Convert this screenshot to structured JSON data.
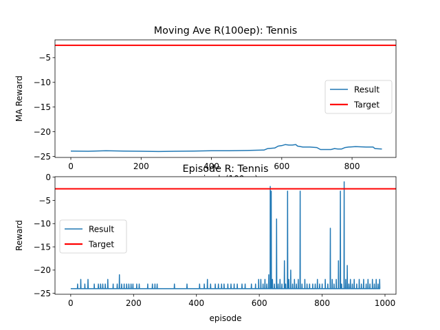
{
  "colors": {
    "result": "#1f77b4",
    "target": "#ff0000",
    "axes": "#000000",
    "background": "#ffffff"
  },
  "chart_data": [
    {
      "type": "line",
      "title": "Moving Ave R(100ep): Tennis",
      "xlabel": "episode(100ep)",
      "ylabel": "MA Reward",
      "xlim": [
        -45,
        925
      ],
      "ylim": [
        -25.2,
        -1.4
      ],
      "xticks": [
        0,
        200,
        400,
        600,
        800
      ],
      "yticks": [
        -25,
        -20,
        -15,
        -10,
        -5
      ],
      "legend_position": "center-right",
      "grid": false,
      "series": [
        {
          "name": "Result",
          "color": "#1f77b4",
          "points": [
            [
              0,
              -23.9
            ],
            [
              50,
              -23.95
            ],
            [
              100,
              -23.85
            ],
            [
              150,
              -23.9
            ],
            [
              200,
              -23.95
            ],
            [
              250,
              -24.0
            ],
            [
              300,
              -23.95
            ],
            [
              350,
              -23.9
            ],
            [
              400,
              -23.85
            ],
            [
              450,
              -23.85
            ],
            [
              500,
              -23.8
            ],
            [
              550,
              -23.7
            ],
            [
              560,
              -23.4
            ],
            [
              580,
              -23.3
            ],
            [
              590,
              -22.9
            ],
            [
              600,
              -22.8
            ],
            [
              610,
              -22.6
            ],
            [
              620,
              -22.7
            ],
            [
              630,
              -22.7
            ],
            [
              640,
              -22.6
            ],
            [
              645,
              -22.9
            ],
            [
              660,
              -23.1
            ],
            [
              680,
              -23.1
            ],
            [
              700,
              -23.2
            ],
            [
              710,
              -23.6
            ],
            [
              740,
              -23.6
            ],
            [
              750,
              -23.4
            ],
            [
              760,
              -23.5
            ],
            [
              770,
              -23.5
            ],
            [
              780,
              -23.2
            ],
            [
              790,
              -23.1
            ],
            [
              810,
              -23.0
            ],
            [
              840,
              -23.1
            ],
            [
              860,
              -23.1
            ],
            [
              865,
              -23.4
            ],
            [
              885,
              -23.5
            ]
          ]
        },
        {
          "name": "Target",
          "color": "#ff0000",
          "y": -2.5
        }
      ]
    },
    {
      "type": "line",
      "title": "Episode R: Tennis",
      "xlabel": "episode",
      "ylabel": "Reward",
      "xlim": [
        -50,
        1035
      ],
      "ylim": [
        -25.2,
        0.1
      ],
      "xticks": [
        0,
        200,
        400,
        600,
        800,
        1000
      ],
      "yticks": [
        -25,
        -20,
        -15,
        -10,
        -5,
        0
      ],
      "legend_position": "center-left",
      "grid": false,
      "series": [
        {
          "name": "Result",
          "color": "#1f77b4",
          "baseline": -24,
          "spikes": [
            [
              22,
              -23
            ],
            [
              32,
              -22
            ],
            [
              45,
              -23
            ],
            [
              55,
              -22
            ],
            [
              75,
              -23
            ],
            [
              88,
              -23
            ],
            [
              95,
              -23
            ],
            [
              102,
              -23
            ],
            [
              110,
              -23
            ],
            [
              118,
              -22
            ],
            [
              135,
              -23
            ],
            [
              148,
              -23
            ],
            [
              155,
              -21
            ],
            [
              162,
              -23
            ],
            [
              170,
              -23
            ],
            [
              178,
              -23
            ],
            [
              185,
              -23
            ],
            [
              192,
              -23
            ],
            [
              198,
              -23
            ],
            [
              210,
              -23
            ],
            [
              218,
              -23
            ],
            [
              245,
              -23
            ],
            [
              260,
              -23
            ],
            [
              268,
              -23
            ],
            [
              275,
              -23
            ],
            [
              330,
              -23
            ],
            [
              370,
              -23
            ],
            [
              410,
              -23
            ],
            [
              425,
              -23
            ],
            [
              435,
              -22
            ],
            [
              445,
              -23
            ],
            [
              460,
              -23
            ],
            [
              470,
              -23
            ],
            [
              480,
              -23
            ],
            [
              488,
              -23
            ],
            [
              500,
              -23
            ],
            [
              510,
              -23
            ],
            [
              520,
              -23
            ],
            [
              530,
              -23
            ],
            [
              545,
              -23
            ],
            [
              555,
              -23
            ],
            [
              575,
              -23
            ],
            [
              588,
              -23
            ],
            [
              598,
              -22
            ],
            [
              605,
              -22
            ],
            [
              612,
              -23
            ],
            [
              618,
              -22
            ],
            [
              624,
              -23
            ],
            [
              630,
              -21
            ],
            [
              635,
              -2
            ],
            [
              638,
              -3
            ],
            [
              642,
              -22
            ],
            [
              648,
              -23
            ],
            [
              655,
              -9
            ],
            [
              660,
              -23
            ],
            [
              666,
              -22
            ],
            [
              672,
              -23
            ],
            [
              680,
              -18
            ],
            [
              684,
              -23
            ],
            [
              690,
              -3
            ],
            [
              694,
              -22
            ],
            [
              700,
              -20
            ],
            [
              706,
              -23
            ],
            [
              712,
              -22
            ],
            [
              718,
              -23
            ],
            [
              724,
              -22
            ],
            [
              730,
              -3
            ],
            [
              736,
              -23
            ],
            [
              745,
              -22
            ],
            [
              752,
              -23
            ],
            [
              760,
              -23
            ],
            [
              770,
              -23
            ],
            [
              778,
              -23
            ],
            [
              785,
              -22
            ],
            [
              792,
              -23
            ],
            [
              800,
              -23
            ],
            [
              810,
              -22
            ],
            [
              818,
              -23
            ],
            [
              826,
              -11
            ],
            [
              832,
              -22
            ],
            [
              838,
              -23
            ],
            [
              845,
              -22
            ],
            [
              852,
              -18
            ],
            [
              858,
              -3
            ],
            [
              862,
              -23
            ],
            [
              870,
              -1
            ],
            [
              875,
              -22
            ],
            [
              880,
              -19
            ],
            [
              885,
              -23
            ],
            [
              890,
              -22
            ],
            [
              896,
              -23
            ],
            [
              902,
              -22
            ],
            [
              910,
              -23
            ],
            [
              918,
              -22
            ],
            [
              925,
              -23
            ],
            [
              932,
              -22
            ],
            [
              940,
              -23
            ],
            [
              946,
              -22
            ],
            [
              952,
              -23
            ],
            [
              960,
              -22
            ],
            [
              966,
              -23
            ],
            [
              972,
              -22
            ],
            [
              978,
              -23
            ],
            [
              983,
              -22
            ]
          ],
          "x_end": 983
        },
        {
          "name": "Target",
          "color": "#ff0000",
          "y": -2.5
        }
      ]
    }
  ]
}
